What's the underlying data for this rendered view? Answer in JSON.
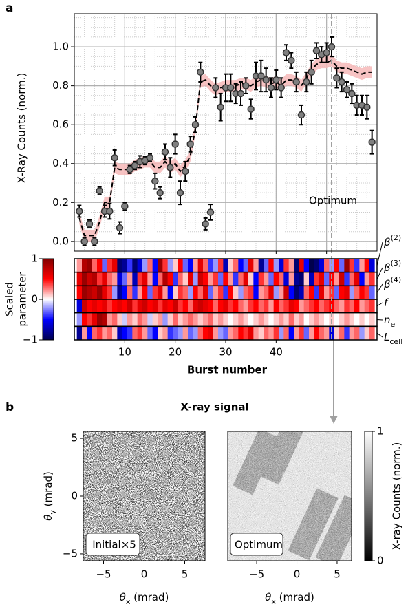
{
  "chart_data": [
    {
      "type": "errorbar",
      "panel": "a",
      "ylabel": "X-Ray Counts (norm.)",
      "xlim": [
        0,
        60
      ],
      "ylim": [
        -0.05,
        1.17
      ],
      "yticks": [
        {
          "value": 0,
          "label": "0.0"
        },
        0.2,
        0.4,
        0.6,
        0.8,
        {
          "value": 1,
          "label": "1.0"
        }
      ],
      "xgrid": [
        10,
        20,
        30,
        40,
        50
      ],
      "grid": true,
      "x": [
        1,
        2,
        3,
        4,
        5,
        6,
        7,
        8,
        9,
        10,
        11,
        12,
        13,
        14,
        15,
        16,
        17,
        18,
        19,
        20,
        21,
        22,
        23,
        24,
        25,
        26,
        27,
        28,
        29,
        30,
        31,
        32,
        33,
        34,
        35,
        36,
        37,
        38,
        39,
        40,
        41,
        42,
        43,
        44,
        45,
        46,
        47,
        48,
        49,
        50,
        51,
        52,
        53,
        54,
        55,
        56,
        57,
        58,
        59
      ],
      "values": [
        0.155,
        0,
        0.09,
        0,
        0.26,
        0.155,
        0.155,
        0.43,
        0.07,
        0.18,
        0.37,
        0.39,
        0.41,
        0.415,
        0.43,
        0.31,
        0.25,
        0.46,
        0.38,
        0.5,
        0.25,
        0.36,
        0.5,
        0.6,
        0.87,
        0.09,
        0.15,
        0.79,
        0.69,
        0.79,
        0.79,
        0.76,
        0.76,
        0.8,
        0.68,
        0.85,
        0.85,
        0.83,
        0.79,
        0.83,
        0.79,
        0.97,
        0.93,
        0.82,
        0.65,
        0.82,
        0.87,
        0.98,
        0.96,
        0.97,
        1.0,
        0.84,
        0.82,
        0.78,
        0.76,
        0.7,
        0.7,
        0.69,
        0.51
      ],
      "errors": [
        0.03,
        0.02,
        0.02,
        0.02,
        0.02,
        0.03,
        0.04,
        0.04,
        0.03,
        0.02,
        0.02,
        0.02,
        0.03,
        0.02,
        0.02,
        0.04,
        0.03,
        0.04,
        0.05,
        0.05,
        0.06,
        0.05,
        0.04,
        0.04,
        0.05,
        0.03,
        0.04,
        0.05,
        0.07,
        0.07,
        0.07,
        0.05,
        0.06,
        0.04,
        0.05,
        0.07,
        0.08,
        0.06,
        0.05,
        0.05,
        0.05,
        0.04,
        0.04,
        0.05,
        0.05,
        0.05,
        0.06,
        0.04,
        0.04,
        0.05,
        0.05,
        0.05,
        0.05,
        0.04,
        0.05,
        0.05,
        0.05,
        0.06,
        0.06
      ],
      "color": "#808080",
      "model": {
        "color": "#000000",
        "band_color": "#f6b9b9",
        "band": 0.03,
        "values": [
          0.12,
          0.03,
          0.03,
          0.03,
          0.1,
          0.2,
          0.2,
          0.38,
          0.37,
          0.37,
          0.37,
          0.39,
          0.4,
          0.41,
          0.41,
          0.38,
          0.38,
          0.41,
          0.38,
          0.4,
          0.36,
          0.39,
          0.44,
          0.58,
          0.82,
          0.83,
          0.8,
          0.78,
          0.79,
          0.8,
          0.8,
          0.8,
          0.81,
          0.81,
          0.8,
          0.82,
          0.83,
          0.82,
          0.81,
          0.82,
          0.8,
          0.83,
          0.83,
          0.82,
          0.8,
          0.84,
          0.88,
          0.91,
          0.92,
          0.92,
          0.93,
          0.9,
          0.89,
          0.89,
          0.88,
          0.87,
          0.86,
          0.87,
          0.87
        ]
      },
      "annotation": {
        "text": "Optimum",
        "x": 51
      }
    },
    {
      "type": "heatmap",
      "xlabel": "Burst number",
      "xlim": [
        0,
        60
      ],
      "xticks": [
        10,
        20,
        30,
        40
      ],
      "colorbar": {
        "label": [
          "Scaled",
          "parameter"
        ],
        "lim": [
          -1,
          1
        ],
        "ticks": [
          {
            "value": -1,
            "label": "−1"
          },
          0,
          1
        ]
      },
      "rows": [
        {
          "label": {
            "base": "β",
            "sup": "(2)"
          },
          "values": [
            0.2,
            0.8,
            0.9,
            0.3,
            0.5,
            -0.3,
            0.4,
            0.6,
            -0.9,
            -0.8,
            -0.4,
            -0.9,
            -0.6,
            -0.2,
            0.3,
            -0.5,
            0.9,
            0.4,
            -0.2,
            0.1,
            0.5,
            -0.3,
            -0.5,
            0.2,
            0.6,
            0.3,
            -0.4,
            -0.2,
            0.4,
            -0.7,
            0.1,
            0.3,
            -0.5,
            -0.3,
            0.6,
            0.2,
            -0.8,
            -0.3,
            0.5,
            -0.2,
            -0.6,
            0.4,
            0.2,
            -0.9,
            0.6,
            -0.5,
            -1.0,
            -0.9,
            -0.6,
            0.3,
            -0.2,
            0.5,
            -0.3,
            0.9,
            0.4,
            -0.4,
            0.2,
            0.5,
            -0.6
          ]
        },
        {
          "label": {
            "base": "β",
            "sup": "(3)"
          },
          "values": [
            0.6,
            0.9,
            0.7,
            0.8,
            0.4,
            0.6,
            0.3,
            0.2,
            -0.6,
            -0.3,
            0.2,
            -0.7,
            0.4,
            0.6,
            0.2,
            -0.5,
            0.3,
            0.8,
            0.5,
            -0.4,
            0.3,
            0.1,
            0.6,
            -0.2,
            0.7,
            0.5,
            0.2,
            0.4,
            -0.3,
            0.5,
            0.2,
            -0.4,
            0.3,
            0.6,
            0.1,
            -0.5,
            0.4,
            0.2,
            -0.3,
            0.5,
            0.3,
            -0.6,
            0.2,
            -0.8,
            -0.9,
            0.1,
            -0.7,
            0.4,
            0.6,
            -0.3,
            0.5,
            0.2,
            0.7,
            -0.4,
            0.3,
            0.6,
            -0.5,
            0.2,
            0.4
          ]
        },
        {
          "label": {
            "base": "β",
            "sup": "(4)"
          },
          "values": [
            0.5,
            0.9,
            0.8,
            0.7,
            0.9,
            0.6,
            0.4,
            -0.2,
            -0.8,
            -0.5,
            0.3,
            -0.4,
            0.2,
            0.5,
            -0.3,
            0.4,
            0.6,
            0.2,
            -0.5,
            0.1,
            0.4,
            0.3,
            -0.2,
            0.5,
            0.3,
            0.6,
            -0.3,
            0.2,
            0.4,
            -0.4,
            0.5,
            0.1,
            -0.2,
            0.3,
            0.4,
            -0.5,
            0.2,
            0.3,
            0.6,
            -0.2,
            0.2,
            0.7,
            -0.5,
            -0.9,
            -0.7,
            0.3,
            0.5,
            -0.4,
            0.6,
            0.2,
            0.4,
            -0.3,
            0.5,
            0.6,
            -0.2,
            0.3,
            0.5,
            0.4,
            -0.3
          ]
        },
        {
          "label": {
            "base": "f"
          },
          "values": [
            -0.6,
            0.7,
            0.5,
            0.6,
            0.5,
            0.6,
            0.4,
            0.5,
            0.6,
            0.5,
            0.7,
            0.4,
            0.6,
            0.7,
            0.5,
            0.6,
            0.4,
            0.6,
            0.5,
            0.7,
            0.4,
            0.5,
            0.3,
            0.6,
            0.7,
            0.6,
            0.5,
            0.3,
            0.5,
            0.6,
            0.4,
            0.5,
            0.3,
            0.2,
            0.4,
            0.5,
            0.3,
            0.4,
            0.2,
            0.5,
            0.3,
            0.4,
            0.6,
            0.5,
            0.2,
            0.3,
            0.4,
            0.5,
            0.3,
            0.4,
            0.5,
            0.3,
            0.2,
            0.4,
            0.3,
            0.5,
            0.2,
            0.3,
            0.4
          ]
        },
        {
          "label": {
            "base": "n",
            "sub": "e"
          },
          "values": [
            -0.2,
            0.5,
            0.4,
            0.6,
            0.9,
            0.8,
            0.2,
            0.3,
            0.1,
            -0.1,
            0.2,
            0.1,
            0.3,
            0.2,
            -0.1,
            0.1,
            0.2,
            -0.2,
            0.1,
            0.3,
            0.1,
            0.2,
            0.3,
            0.2,
            0.1,
            0.2,
            0.3,
            0.1,
            0.2,
            0.1,
            0.0,
            0.1,
            0.2,
            0.1,
            0.0,
            0.1,
            0.2,
            0.1,
            0.0,
            0.1,
            0.2,
            0.1,
            0.3,
            0.1,
            0.2,
            0.0,
            0.1,
            0.2,
            0.1,
            0.0,
            0.1,
            0.0,
            0.1,
            0.2,
            0.1,
            0.0,
            0.1,
            0.0,
            0.1
          ]
        },
        {
          "label": {
            "base": "L",
            "sub": "cell"
          },
          "values": [
            -0.8,
            0.2,
            -0.5,
            0.3,
            0.4,
            0.2,
            0.3,
            0.1,
            -0.7,
            -0.5,
            -0.4,
            0.3,
            0.4,
            0.2,
            -0.3,
            -0.5,
            0.1,
            0.2,
            -0.4,
            -0.3,
            -0.2,
            0.2,
            -0.3,
            -0.2,
            0.3,
            0.5,
            0.6,
            0.2,
            -0.2,
            -0.3,
            0.2,
            0.3,
            0.5,
            0.4,
            0.6,
            0.2,
            0.1,
            0.3,
            0.2,
            0.4,
            -0.2,
            0.3,
            -0.5,
            0.2,
            0.4,
            -0.3,
            0.2,
            0.5,
            0.3,
            0.2,
            -0.6,
            0.1,
            0.3,
            -0.4,
            0.2,
            0.3,
            -0.2,
            0.1,
            0.3
          ]
        }
      ]
    },
    {
      "type": "image",
      "panel": "b",
      "title": "X-ray signal",
      "inset_label": "Initial×5",
      "xlabel": {
        "base": "θ",
        "sub": "x",
        "rest": " (mrad)"
      },
      "ylabel": {
        "base": "θ",
        "sub": "y",
        "rest": " (mrad)"
      },
      "xlim": [
        -7.5,
        7.5
      ],
      "ylim": [
        -5.6,
        5.6
      ],
      "xticks": [
        {
          "value": -5,
          "label": "−5"
        },
        0,
        5
      ],
      "yticks": [
        {
          "value": -5,
          "label": "−5"
        },
        0,
        5
      ]
    },
    {
      "type": "image",
      "inset_label": "Optimum",
      "xlabel": {
        "base": "θ",
        "sub": "x",
        "rest": " (mrad)"
      },
      "xlim": [
        -8.6,
        6.8
      ],
      "ylim": [
        -5.6,
        5.6
      ],
      "xticks": [
        {
          "value": -5,
          "label": "−5"
        },
        0,
        5
      ],
      "colorbar": {
        "label": "X-ray Counts (norm.)",
        "lim": [
          0,
          1
        ],
        "ticks": [
          0,
          1
        ]
      }
    }
  ]
}
